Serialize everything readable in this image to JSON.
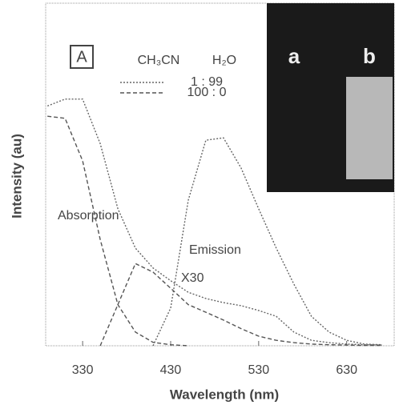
{
  "chart_data": {
    "type": "line",
    "panel_label": "A",
    "legend_header": [
      "CH₃CN",
      "H₂O"
    ],
    "legend_loc": "upper center",
    "xlabel": "Wavelength (nm)",
    "ylabel": "Intensity (au)",
    "xlim": [
      288,
      684
    ],
    "ylim": [
      0,
      100
    ],
    "xticks": [
      330,
      430,
      530,
      630
    ],
    "x": [
      290,
      310,
      330,
      350,
      370,
      390,
      410,
      430,
      450,
      470,
      490,
      510,
      530,
      550,
      570,
      590,
      610,
      630,
      650,
      670
    ],
    "series": [
      {
        "name": "1 : 99",
        "color": "#666666",
        "dash": "2,2",
        "absorption": [
          70,
          72,
          72,
          59,
          40,
          28.5,
          22.7,
          19,
          15.6,
          13.8,
          12.6,
          11.7,
          10.3,
          8.6,
          4,
          1.6,
          0.9,
          0.5,
          0.3,
          0.2
        ],
        "emission": [
          null,
          null,
          null,
          null,
          null,
          null,
          0,
          11,
          42.5,
          60,
          60.7,
          51.9,
          40,
          28.5,
          18,
          8.6,
          4,
          1.6,
          0.5,
          0.3
        ]
      },
      {
        "name": "100 : 0",
        "color": "#555555",
        "dash": "5,3",
        "absorption": [
          67,
          66.4,
          54,
          31,
          12,
          4,
          1,
          0.3,
          0,
          null,
          null,
          null,
          null,
          null,
          null,
          null,
          null,
          null,
          null,
          null
        ],
        "emission": [
          null,
          null,
          null,
          0,
          12,
          24,
          21.5,
          16.8,
          12,
          9.8,
          7.5,
          5,
          2.8,
          1.6,
          0.9,
          0.5,
          0.3,
          0.2,
          0.1,
          0.1
        ]
      }
    ],
    "annotations": [
      "Absorption",
      "Emission",
      "X30"
    ],
    "inset_labels": [
      "a",
      "b"
    ]
  }
}
